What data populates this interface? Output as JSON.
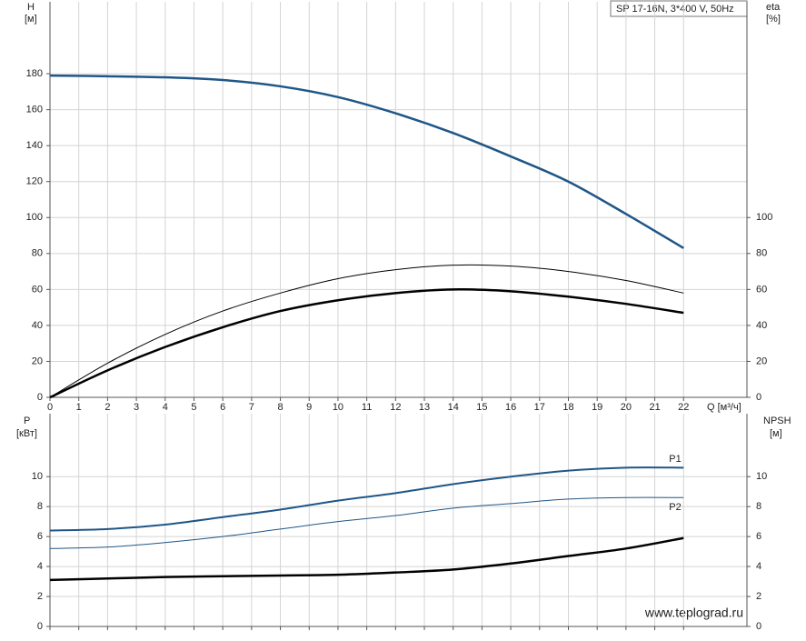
{
  "chart_data": [
    {
      "type": "line",
      "title": "SP 17-16N, 3*400 V, 50Hz",
      "y_label": "H",
      "y_unit": "[м]",
      "y2_label": "eta",
      "y2_unit": "[%]",
      "x_label": "Q [м³/ч]",
      "x": [
        0,
        2,
        4,
        6,
        8,
        10,
        12,
        14,
        16,
        18,
        20,
        22
      ],
      "xlim": [
        0,
        24.2
      ],
      "xticks": [
        0,
        1,
        2,
        3,
        4,
        5,
        6,
        7,
        8,
        9,
        10,
        11,
        12,
        13,
        14,
        15,
        16,
        17,
        18,
        19,
        20,
        21,
        22
      ],
      "ylim": [
        0,
        220
      ],
      "yticks": [
        0,
        20,
        40,
        60,
        80,
        100,
        120,
        140,
        160,
        180
      ],
      "y2lim": [
        0,
        220
      ],
      "y2ticks": [
        0,
        20,
        40,
        60,
        80,
        100
      ],
      "grid": true,
      "series": [
        {
          "color": "#1f5687",
          "line_width": 2.5,
          "values": [
            179,
            178.6,
            178,
            176.5,
            173,
            167,
            158,
            147,
            134,
            120,
            102,
            83
          ]
        },
        {
          "color": "#000000",
          "line_width": 1,
          "axis": "y2",
          "values": [
            0,
            19,
            35,
            48,
            58,
            66,
            71,
            73.5,
            73,
            70,
            65,
            58
          ]
        },
        {
          "color": "#000000",
          "line_width": 2.5,
          "axis": "y2",
          "values": [
            0,
            15,
            28,
            39,
            48,
            54,
            58,
            60,
            59,
            56,
            52,
            47
          ]
        }
      ]
    },
    {
      "type": "line",
      "y_label": "P",
      "y_unit": "[кВт]",
      "y2_label": "NPSH",
      "y2_unit": "[м]",
      "x": [
        0,
        2,
        4,
        6,
        8,
        10,
        12,
        14,
        16,
        18,
        20,
        22
      ],
      "xlim": [
        0,
        24.2
      ],
      "xticks": [
        0,
        1,
        2,
        3,
        4,
        5,
        6,
        7,
        8,
        9,
        10,
        11,
        12,
        13,
        14,
        15,
        16,
        17,
        18,
        19,
        20,
        21,
        22
      ],
      "ylim": [
        0,
        14.2
      ],
      "yticks": [
        0,
        2,
        4,
        6,
        8,
        10
      ],
      "y2lim": [
        0,
        14.2
      ],
      "y2ticks": [
        0,
        2,
        4,
        6,
        8,
        10
      ],
      "grid": true,
      "series": [
        {
          "name": "P1",
          "color": "#1f5687",
          "line_width": 2,
          "values": [
            6.4,
            6.5,
            6.8,
            7.3,
            7.8,
            8.4,
            8.9,
            9.5,
            10,
            10.4,
            10.6,
            10.6
          ]
        },
        {
          "name": "P2",
          "color": "#1f5687",
          "line_width": 1,
          "values": [
            5.2,
            5.3,
            5.6,
            6.0,
            6.5,
            7.0,
            7.4,
            7.9,
            8.2,
            8.5,
            8.6,
            8.6
          ]
        },
        {
          "color": "#000000",
          "line_width": 2.5,
          "axis": "y2",
          "values": [
            3.1,
            3.2,
            3.3,
            3.35,
            3.4,
            3.45,
            3.6,
            3.8,
            4.2,
            4.7,
            5.2,
            5.9
          ]
        }
      ]
    }
  ],
  "watermark": "www.teplograd.ru"
}
